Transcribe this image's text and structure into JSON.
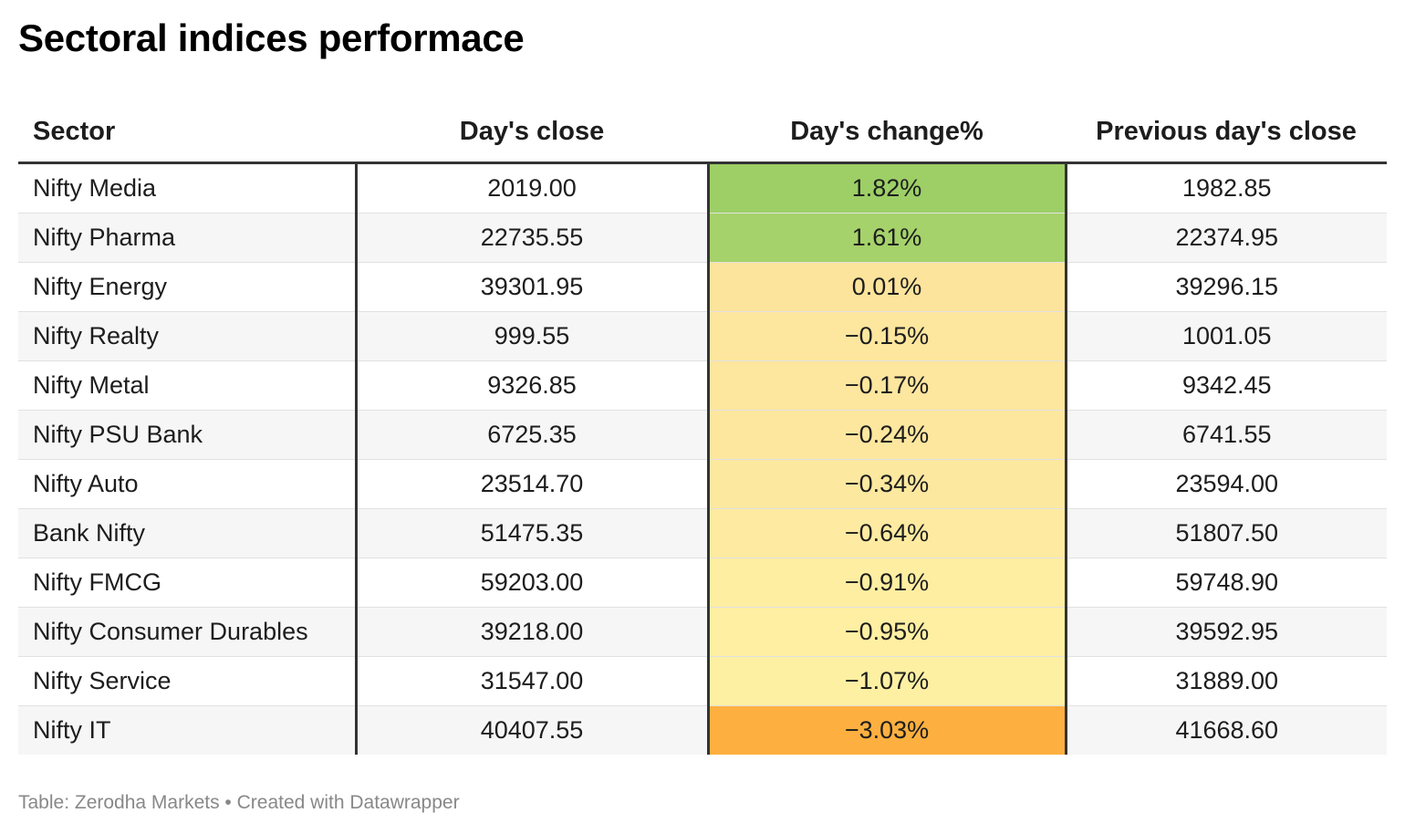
{
  "title": "Sectoral indices performace",
  "footer": "Table: Zerodha Markets • Created with Datawrapper",
  "colors": {
    "green_strong": "#9ed068",
    "green_mid": "#a8d36a",
    "yellow_light": "#fdf0a3",
    "yellow_mid": "#fde49a",
    "orange": "#fdb03f"
  },
  "chart_data": {
    "type": "table",
    "columns": [
      "Sector",
      "Day's close",
      "Day's change%",
      "Previous day's close"
    ],
    "rows": [
      {
        "sector": "Nifty Media",
        "close": "2019.00",
        "change": "1.82%",
        "prev": "1982.85",
        "change_value": 1.82,
        "color": "#9dcf66"
      },
      {
        "sector": "Nifty Pharma",
        "close": "22735.55",
        "change": "1.61%",
        "prev": "22374.95",
        "change_value": 1.61,
        "color": "#a5d26a"
      },
      {
        "sector": "Nifty Energy",
        "close": "39301.95",
        "change": "0.01%",
        "prev": "39296.15",
        "change_value": 0.01,
        "color": "#fde49c"
      },
      {
        "sector": "Nifty Realty",
        "close": "999.55",
        "change": "−0.15%",
        "prev": "1001.05",
        "change_value": -0.15,
        "color": "#fde69e"
      },
      {
        "sector": "Nifty Metal",
        "close": "9326.85",
        "change": "−0.17%",
        "prev": "9342.45",
        "change_value": -0.17,
        "color": "#fde69e"
      },
      {
        "sector": "Nifty PSU Bank",
        "close": "6725.35",
        "change": "−0.24%",
        "prev": "6741.55",
        "change_value": -0.24,
        "color": "#fde79f"
      },
      {
        "sector": "Nifty Auto",
        "close": "23514.70",
        "change": "−0.34%",
        "prev": "23594.00",
        "change_value": -0.34,
        "color": "#fde8a0"
      },
      {
        "sector": "Bank Nifty",
        "close": "51475.35",
        "change": "−0.64%",
        "prev": "51807.50",
        "change_value": -0.64,
        "color": "#feeba1"
      },
      {
        "sector": "Nifty FMCG",
        "close": "59203.00",
        "change": "−0.91%",
        "prev": "59748.90",
        "change_value": -0.91,
        "color": "#feeea2"
      },
      {
        "sector": "Nifty Consumer Durables",
        "close": "39218.00",
        "change": "−0.95%",
        "prev": "39592.95",
        "change_value": -0.95,
        "color": "#feefa3"
      },
      {
        "sector": "Nifty Service",
        "close": "31547.00",
        "change": "−1.07%",
        "prev": "31889.00",
        "change_value": -1.07,
        "color": "#fef0a3"
      },
      {
        "sector": "Nifty IT",
        "close": "40407.55",
        "change": "−3.03%",
        "prev": "41668.60",
        "change_value": -3.03,
        "color": "#fdb03f"
      }
    ]
  }
}
